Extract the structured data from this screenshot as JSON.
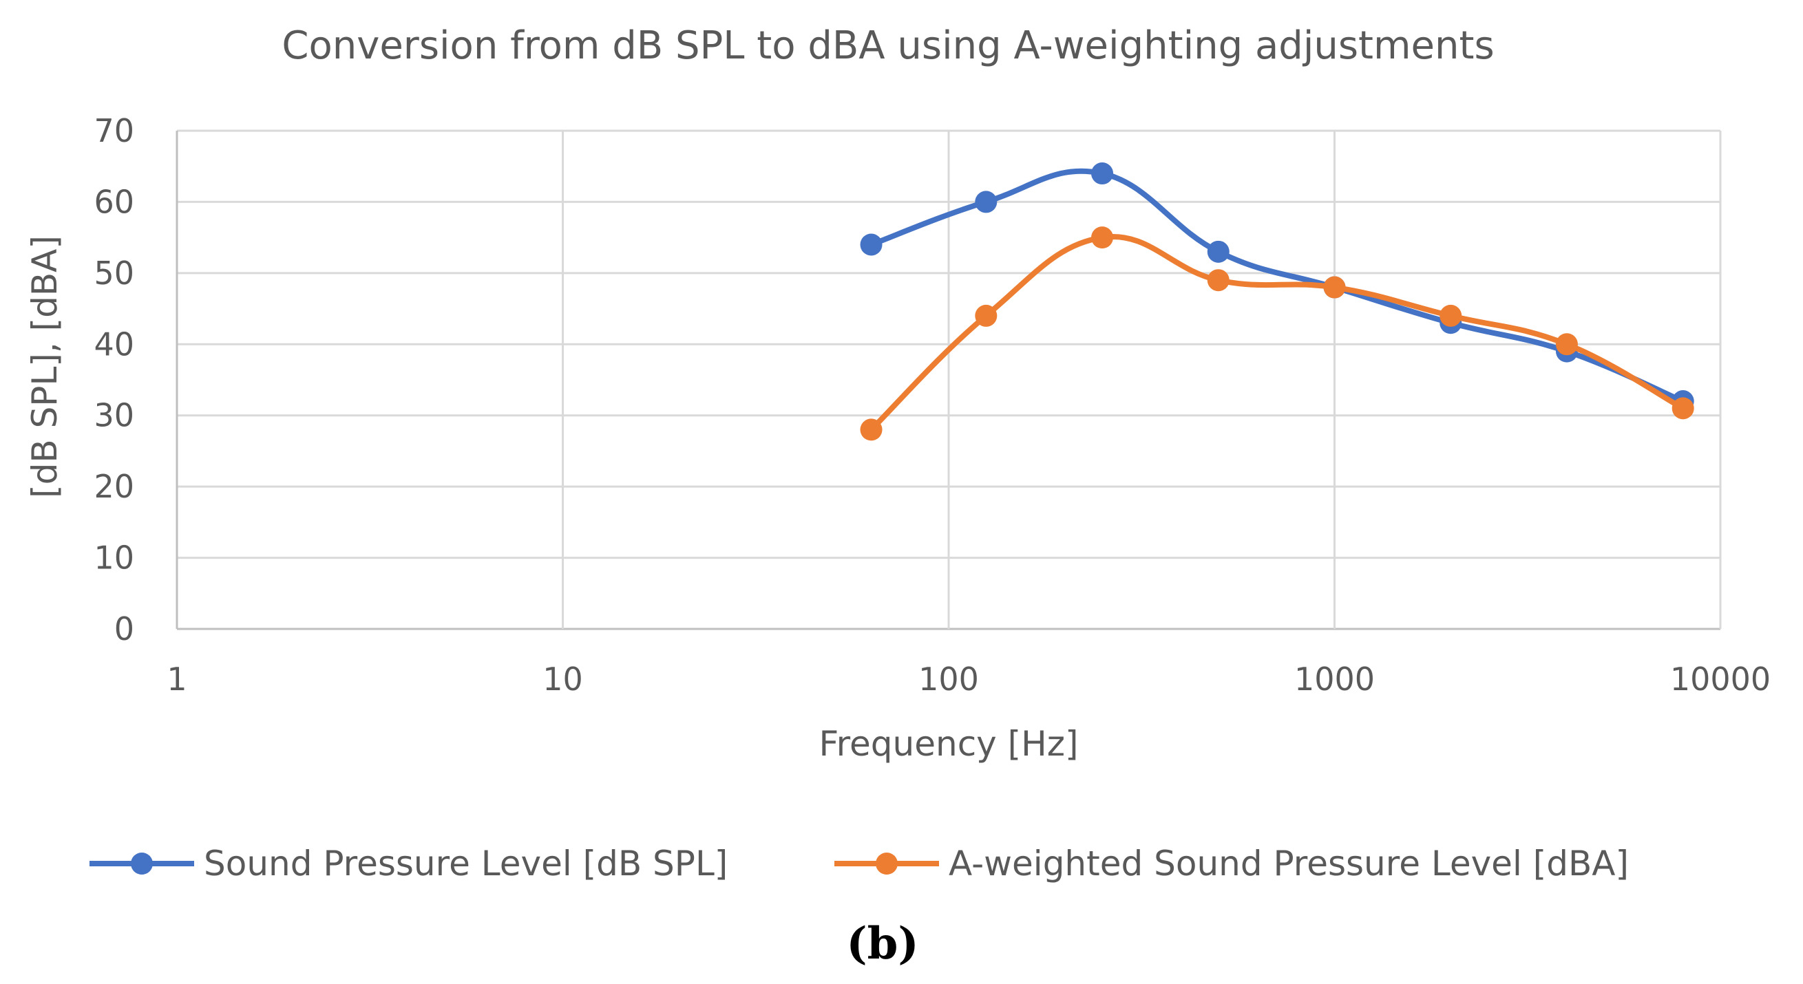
{
  "colors": {
    "series_1": "#4472c4",
    "series_2": "#ed7d31",
    "grid": "#d9d9d9",
    "text": "#595959"
  },
  "panel_label": "(b)",
  "chart_data": {
    "type": "line",
    "title": "Conversion from dB SPL to dBA using A-weighting adjustments",
    "xlabel": "Frequency [Hz]",
    "ylabel": "[dB SPL], [dBA]",
    "xscale": "log",
    "xlim": [
      1,
      10000
    ],
    "ylim": [
      0,
      70
    ],
    "xticks": [
      1,
      10,
      100,
      1000,
      10000
    ],
    "xtick_labels": [
      "1",
      "10",
      "100",
      "1000",
      "10000"
    ],
    "yticks": [
      0,
      10,
      20,
      30,
      40,
      50,
      60,
      70
    ],
    "ytick_labels": [
      "0",
      "10",
      "20",
      "30",
      "40",
      "50",
      "60",
      "70"
    ],
    "grid": true,
    "smooth": true,
    "legend_position": "bottom",
    "x": [
      63,
      125,
      250,
      500,
      1000,
      2000,
      4000,
      8000
    ],
    "series": [
      {
        "name": "Sound Pressure Level [dB SPL]",
        "color": "#4472c4",
        "values": [
          54,
          60,
          64,
          53,
          48,
          43,
          39,
          32
        ]
      },
      {
        "name": "A-weighted Sound Pressure Level [dBA]",
        "color": "#ed7d31",
        "values": [
          28,
          44,
          55,
          49,
          48,
          44,
          40,
          31
        ]
      }
    ]
  }
}
